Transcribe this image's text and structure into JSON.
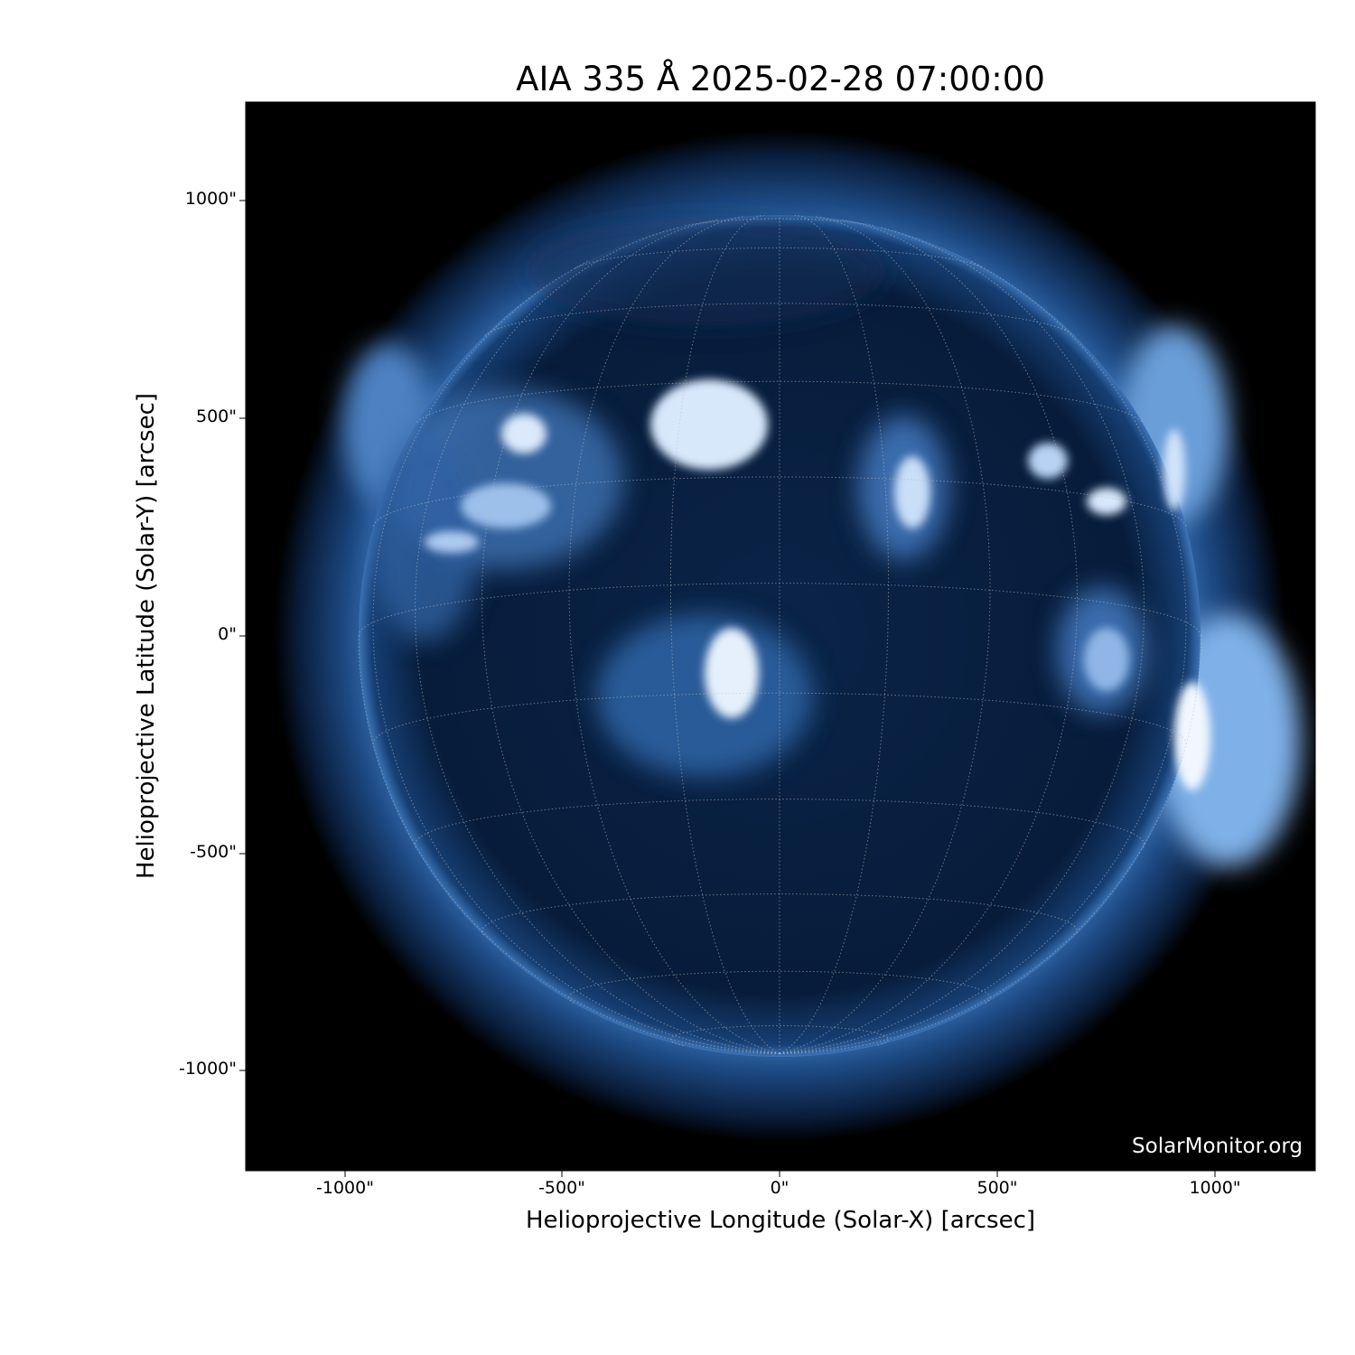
{
  "title": "AIA 335 Å 2025-02-28 07:00:00",
  "xlabel": "Helioprojective Longitude (Solar-X) [arcsec]",
  "ylabel": "Helioprojective Latitude (Solar-Y) [arcsec]",
  "xticks": [
    "-1000\"",
    "-500\"",
    "0\"",
    "500\"",
    "1000\""
  ],
  "yticks": [
    "1000\"",
    "500\"",
    "0\"",
    "-500\"",
    "-1000\""
  ],
  "watermark": "SolarMonitor.org",
  "colormap": "sdoaia335 (black-blue-white)",
  "colors": {
    "background": "#000000",
    "disk": "#061a36",
    "bright": "#e8f2ff",
    "corona": "#2a5d9a"
  }
}
